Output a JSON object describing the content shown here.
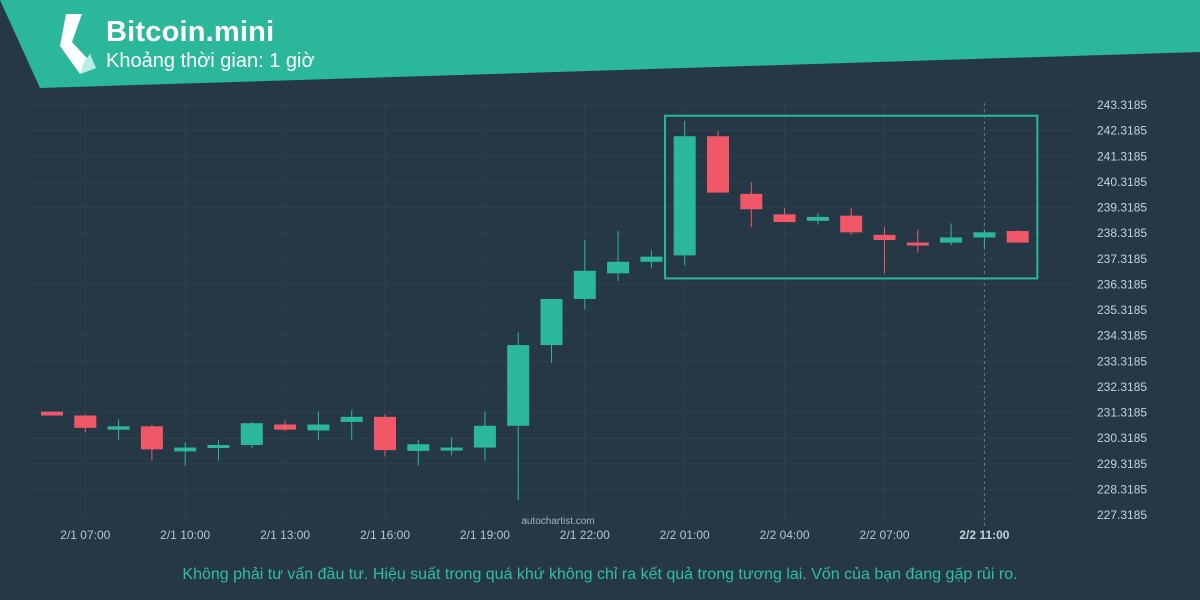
{
  "header": {
    "title": "Bitcoin.mini",
    "subtitle": "Khoảng thời gian: 1 giờ",
    "logo_icon": "autochartist-logo-icon"
  },
  "colors": {
    "background": "#263846",
    "banner": "#2bb89a",
    "up": "#2bb89a",
    "down": "#f05868",
    "grid": "#2d404e",
    "box": "#2bb89a"
  },
  "watermark": "autochartist.com",
  "disclaimer": "Không phải tư vấn đầu tư. Hiệu suất trong quá khứ không chỉ ra kết quả trong tương lai. Vốn của bạn đang gặp rủi ro.",
  "chart_data": {
    "type": "candlestick",
    "x_tick_labels": [
      "2/1 07:00",
      "2/1 10:00",
      "2/1 13:00",
      "2/1 16:00",
      "2/1 19:00",
      "2/1 22:00",
      "2/2 01:00",
      "2/2 04:00",
      "2/2 07:00",
      "2/2 11:00"
    ],
    "x_tick_positions": [
      1,
      4,
      7,
      10,
      13,
      16,
      19,
      22,
      25,
      28
    ],
    "current_tick": "2/2 11:00",
    "y_tick_labels": [
      "243.3185",
      "242.3185",
      "241.3185",
      "240.3185",
      "239.3185",
      "238.3185",
      "237.3185",
      "236.3185",
      "235.3185",
      "234.3185",
      "233.3185",
      "232.3185",
      "231.3185",
      "230.3185",
      "229.3185",
      "228.3185",
      "227.3185"
    ],
    "ylim": [
      226.9,
      243.5
    ],
    "candles": [
      {
        "x": 0,
        "open": 231.35,
        "high": 231.35,
        "low": 231.2,
        "close": 231.2
      },
      {
        "x": 1,
        "open": 231.2,
        "high": 231.25,
        "low": 230.55,
        "close": 230.72
      },
      {
        "x": 2,
        "open": 230.65,
        "high": 231.05,
        "low": 230.25,
        "close": 230.78
      },
      {
        "x": 3,
        "open": 230.78,
        "high": 230.85,
        "low": 229.45,
        "close": 229.88
      },
      {
        "x": 4,
        "open": 229.8,
        "high": 230.15,
        "low": 229.25,
        "close": 229.95
      },
      {
        "x": 5,
        "open": 230.0,
        "high": 230.25,
        "low": 229.45,
        "close": 230.05
      },
      {
        "x": 6,
        "open": 230.05,
        "high": 230.95,
        "low": 229.95,
        "close": 230.9
      },
      {
        "x": 7,
        "open": 230.85,
        "high": 231.0,
        "low": 230.6,
        "close": 230.65
      },
      {
        "x": 8,
        "open": 230.62,
        "high": 231.35,
        "low": 230.25,
        "close": 230.85
      },
      {
        "x": 9,
        "open": 230.95,
        "high": 231.42,
        "low": 230.25,
        "close": 231.15
      },
      {
        "x": 10,
        "open": 231.15,
        "high": 231.25,
        "low": 229.6,
        "close": 229.85
      },
      {
        "x": 11,
        "open": 229.82,
        "high": 230.25,
        "low": 229.25,
        "close": 230.08
      },
      {
        "x": 12,
        "open": 229.95,
        "high": 230.35,
        "low": 229.65,
        "close": 229.95
      },
      {
        "x": 13,
        "open": 229.95,
        "high": 231.35,
        "low": 229.45,
        "close": 230.8
      },
      {
        "x": 14,
        "open": 230.8,
        "high": 234.45,
        "low": 227.9,
        "close": 233.95
      },
      {
        "x": 15,
        "open": 233.95,
        "high": 235.75,
        "low": 233.25,
        "close": 235.75
      },
      {
        "x": 16,
        "open": 235.75,
        "high": 238.05,
        "low": 235.35,
        "close": 236.85
      },
      {
        "x": 17,
        "open": 236.75,
        "high": 238.4,
        "low": 236.45,
        "close": 237.2
      },
      {
        "x": 18,
        "open": 237.2,
        "high": 237.65,
        "low": 236.95,
        "close": 237.4
      },
      {
        "x": 19,
        "open": 237.45,
        "high": 242.7,
        "low": 237.05,
        "close": 242.1
      },
      {
        "x": 20,
        "open": 242.1,
        "high": 242.3,
        "low": 239.9,
        "close": 239.9
      },
      {
        "x": 21,
        "open": 239.85,
        "high": 240.3,
        "low": 238.55,
        "close": 239.25
      },
      {
        "x": 22,
        "open": 239.05,
        "high": 239.3,
        "low": 238.75,
        "close": 238.75
      },
      {
        "x": 23,
        "open": 238.8,
        "high": 239.1,
        "low": 238.65,
        "close": 238.95
      },
      {
        "x": 24,
        "open": 239.0,
        "high": 239.3,
        "low": 238.25,
        "close": 238.35
      },
      {
        "x": 25,
        "open": 238.25,
        "high": 238.55,
        "low": 236.75,
        "close": 238.05
      },
      {
        "x": 26,
        "open": 237.95,
        "high": 238.45,
        "low": 237.55,
        "close": 237.9
      },
      {
        "x": 27,
        "open": 237.95,
        "high": 238.7,
        "low": 237.85,
        "close": 238.15
      },
      {
        "x": 28,
        "open": 238.15,
        "high": 238.45,
        "low": 237.75,
        "close": 238.35
      },
      {
        "x": 29,
        "open": 238.4,
        "high": 238.45,
        "low": 237.95,
        "close": 237.95
      }
    ],
    "pattern_box": {
      "x_start": 18.5,
      "x_end": 29.5,
      "y_low": 236.55,
      "y_high": 242.9
    },
    "grid": true,
    "legend": "none"
  }
}
